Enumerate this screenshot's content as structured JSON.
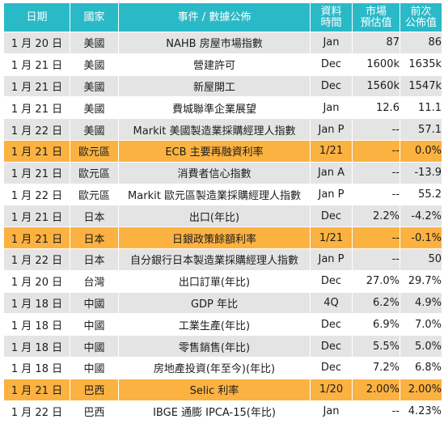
{
  "headers": {
    "date": "日期",
    "country": "國家",
    "event": "事件 / 數據公佈",
    "period_1": "資料",
    "period_2": "時間",
    "expected_1": "市場",
    "expected_2": "預估值",
    "previous_1": "前次",
    "previous_2": "公佈值"
  },
  "colors": {
    "header": "#2ab9c7",
    "row_alt": "#e4e4e4",
    "row_plain": "#ffffff",
    "highlight": "#fcb241"
  },
  "rows": [
    {
      "date": "1 月 20 日",
      "country": "美國",
      "event": "NAHB 房屋市場指數",
      "period": "Jan",
      "expected": "87",
      "previous": "86",
      "style": "alt"
    },
    {
      "date": "1 月 21 日",
      "country": "美國",
      "event": "營建許可",
      "period": "Dec",
      "expected": "1600k",
      "previous": "1635k",
      "style": "plain"
    },
    {
      "date": "1 月 21 日",
      "country": "美國",
      "event": "新屋開工",
      "period": "Dec",
      "expected": "1560k",
      "previous": "1547k",
      "style": "alt"
    },
    {
      "date": "1 月 21 日",
      "country": "美國",
      "event": "費城聯準企業展望",
      "period": "Jan",
      "expected": "12.6",
      "previous": "11.1",
      "style": "plain"
    },
    {
      "date": "1 月 22 日",
      "country": "美國",
      "event": "Markit 美國製造業採購經理人指數",
      "period": "Jan P",
      "expected": "--",
      "previous": "57.1",
      "style": "alt"
    },
    {
      "date": "1 月 21 日",
      "country": "歐元區",
      "event": "ECB 主要再融資利率",
      "period": "1/21",
      "expected": "--",
      "previous": "0.0%",
      "style": "hl"
    },
    {
      "date": "1 月 21 日",
      "country": "歐元區",
      "event": "消費者信心指數",
      "period": "Jan A",
      "expected": "--",
      "previous": "-13.9",
      "style": "alt"
    },
    {
      "date": "1 月 22 日",
      "country": "歐元區",
      "event": "Markit 歐元區製造業採購經理人指數",
      "period": "Jan P",
      "expected": "--",
      "previous": "55.2",
      "style": "plain"
    },
    {
      "date": "1 月 21 日",
      "country": "日本",
      "event": "出口(年比)",
      "period": "Dec",
      "expected": "2.2%",
      "previous": "-4.2%",
      "style": "alt"
    },
    {
      "date": "1 月 21 日",
      "country": "日本",
      "event": "日銀政策餘額利率",
      "period": "1/21",
      "expected": "--",
      "previous": "-0.1%",
      "style": "hl"
    },
    {
      "date": "1 月 22 日",
      "country": "日本",
      "event": "自分銀行日本製造業採購經理人指數",
      "period": "Jan P",
      "expected": "--",
      "previous": "50",
      "style": "alt"
    },
    {
      "date": "1 月 20 日",
      "country": "台灣",
      "event": "出口訂單(年比)",
      "period": "Dec",
      "expected": "27.0%",
      "previous": "29.7%",
      "style": "plain"
    },
    {
      "date": "1 月 18 日",
      "country": "中國",
      "event": "GDP 年比",
      "period": "4Q",
      "expected": "6.2%",
      "previous": "4.9%",
      "style": "alt"
    },
    {
      "date": "1 月 18 日",
      "country": "中國",
      "event": "工業生產(年比)",
      "period": "Dec",
      "expected": "6.9%",
      "previous": "7.0%",
      "style": "plain"
    },
    {
      "date": "1 月 18 日",
      "country": "中國",
      "event": "零售銷售(年比)",
      "period": "Dec",
      "expected": "5.5%",
      "previous": "5.0%",
      "style": "alt"
    },
    {
      "date": "1 月 18 日",
      "country": "中國",
      "event": "房地產投資(年至今)(年比)",
      "period": "Dec",
      "expected": "7.2%",
      "previous": "6.8%",
      "style": "plain"
    },
    {
      "date": "1 月 21 日",
      "country": "巴西",
      "event": "Selic 利率",
      "period": "1/20",
      "expected": "2.00%",
      "previous": "2.00%",
      "style": "hl"
    },
    {
      "date": "1 月 22 日",
      "country": "巴西",
      "event": "IBGE 通膨 IPCA-15(年比)",
      "period": "Jan",
      "expected": "--",
      "previous": "4.23%",
      "style": "plain"
    }
  ]
}
